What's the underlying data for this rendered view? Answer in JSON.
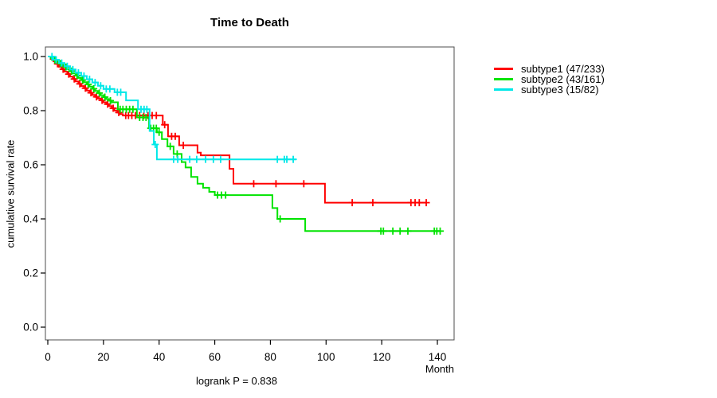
{
  "figure": {
    "title": "Time to Death",
    "annotation": "logrank P = 0.838"
  },
  "chart_data": {
    "type": "line",
    "subtype": "kaplan-meier-step-curves",
    "title": "Time to Death",
    "xlabel": "Month",
    "ylabel": "cumulative survival rate",
    "xlim": [
      0,
      140
    ],
    "ylim": [
      0.0,
      1.0
    ],
    "xticks": [
      0,
      20,
      40,
      60,
      80,
      100,
      120,
      140
    ],
    "yticks": [
      0.0,
      0.2,
      0.4,
      0.6,
      0.8,
      1.0
    ],
    "grid": false,
    "legend_position": "right-outside",
    "annotation": "logrank P = 0.838",
    "series": [
      {
        "name": "subtype1",
        "legend": "subtype1 (47/233)",
        "events": 47,
        "n": 233,
        "color": "#ff0000",
        "end_month": 136,
        "steps": [
          [
            0,
            1.0
          ],
          [
            1,
            0.991
          ],
          [
            2,
            0.982
          ],
          [
            3,
            0.973
          ],
          [
            4,
            0.962
          ],
          [
            5,
            0.953
          ],
          [
            6,
            0.944
          ],
          [
            7,
            0.935
          ],
          [
            8,
            0.926
          ],
          [
            9,
            0.917
          ],
          [
            10,
            0.908
          ],
          [
            11,
            0.899
          ],
          [
            12,
            0.891
          ],
          [
            13,
            0.883
          ],
          [
            14,
            0.874
          ],
          [
            15,
            0.866
          ],
          [
            16,
            0.858
          ],
          [
            17,
            0.851
          ],
          [
            18,
            0.845
          ],
          [
            19,
            0.838
          ],
          [
            20,
            0.831
          ],
          [
            21,
            0.824
          ],
          [
            22,
            0.817
          ],
          [
            23,
            0.809
          ],
          [
            24,
            0.8
          ],
          [
            25,
            0.793
          ],
          [
            26,
            0.787
          ],
          [
            27,
            0.782
          ],
          [
            41.3,
            0.748
          ],
          [
            43.2,
            0.705
          ],
          [
            47.2,
            0.672
          ],
          [
            53.8,
            0.645
          ],
          [
            55,
            0.635
          ],
          [
            65.3,
            0.585
          ],
          [
            66.7,
            0.53
          ],
          [
            99.6,
            0.46
          ]
        ],
        "censors": [
          [
            3.5,
            0.973
          ],
          [
            5.5,
            0.953
          ],
          [
            7.5,
            0.935
          ],
          [
            9.5,
            0.917
          ],
          [
            11.5,
            0.899
          ],
          [
            13.5,
            0.883
          ],
          [
            15.5,
            0.866
          ],
          [
            17.5,
            0.851
          ],
          [
            19.5,
            0.838
          ],
          [
            21.5,
            0.824
          ],
          [
            23.5,
            0.809
          ],
          [
            25.5,
            0.793
          ],
          [
            28,
            0.782
          ],
          [
            29,
            0.782
          ],
          [
            30.2,
            0.782
          ],
          [
            31.5,
            0.782
          ],
          [
            33,
            0.782
          ],
          [
            34.5,
            0.782
          ],
          [
            36,
            0.782
          ],
          [
            37.5,
            0.782
          ],
          [
            39,
            0.782
          ],
          [
            42,
            0.748
          ],
          [
            44.5,
            0.705
          ],
          [
            45.8,
            0.705
          ],
          [
            48.7,
            0.672
          ],
          [
            74,
            0.53
          ],
          [
            82,
            0.53
          ],
          [
            92,
            0.53
          ],
          [
            109.4,
            0.46
          ],
          [
            116.8,
            0.46
          ],
          [
            130.5,
            0.46
          ],
          [
            132,
            0.46
          ],
          [
            133.5,
            0.46
          ],
          [
            136,
            0.46
          ]
        ]
      },
      {
        "name": "subtype2",
        "legend": "subtype2 (43/161)",
        "events": 43,
        "n": 161,
        "color": "#00e300",
        "end_month": 141,
        "steps": [
          [
            0,
            1.0
          ],
          [
            1,
            0.994
          ],
          [
            2,
            0.987
          ],
          [
            3,
            0.981
          ],
          [
            4,
            0.974
          ],
          [
            5,
            0.968
          ],
          [
            6,
            0.961
          ],
          [
            7,
            0.953
          ],
          [
            8,
            0.946
          ],
          [
            9,
            0.938
          ],
          [
            10,
            0.93
          ],
          [
            11,
            0.921
          ],
          [
            12,
            0.913
          ],
          [
            13,
            0.905
          ],
          [
            14,
            0.897
          ],
          [
            15,
            0.889
          ],
          [
            16,
            0.881
          ],
          [
            17,
            0.873
          ],
          [
            18,
            0.865
          ],
          [
            19,
            0.857
          ],
          [
            20,
            0.85
          ],
          [
            21,
            0.843
          ],
          [
            22,
            0.837
          ],
          [
            23,
            0.831
          ],
          [
            25.2,
            0.805
          ],
          [
            32,
            0.775
          ],
          [
            36.4,
            0.735
          ],
          [
            39.2,
            0.72
          ],
          [
            41,
            0.695
          ],
          [
            43,
            0.668
          ],
          [
            45.2,
            0.64
          ],
          [
            48.1,
            0.61
          ],
          [
            49.5,
            0.59
          ],
          [
            51.5,
            0.555
          ],
          [
            53.8,
            0.53
          ],
          [
            55.8,
            0.515
          ],
          [
            58,
            0.5
          ],
          [
            60,
            0.488
          ],
          [
            80.7,
            0.44
          ],
          [
            82.5,
            0.4
          ],
          [
            92.5,
            0.355
          ]
        ],
        "censors": [
          [
            2.5,
            0.987
          ],
          [
            4.5,
            0.974
          ],
          [
            6.5,
            0.961
          ],
          [
            8.5,
            0.946
          ],
          [
            10.5,
            0.93
          ],
          [
            12.5,
            0.913
          ],
          [
            14.5,
            0.897
          ],
          [
            16.5,
            0.881
          ],
          [
            18.5,
            0.865
          ],
          [
            20.5,
            0.85
          ],
          [
            22.5,
            0.837
          ],
          [
            26,
            0.805
          ],
          [
            27,
            0.805
          ],
          [
            28.2,
            0.805
          ],
          [
            29.4,
            0.805
          ],
          [
            30.6,
            0.805
          ],
          [
            33,
            0.775
          ],
          [
            34.2,
            0.775
          ],
          [
            35.3,
            0.775
          ],
          [
            37,
            0.735
          ],
          [
            38,
            0.735
          ],
          [
            39,
            0.735
          ],
          [
            40,
            0.72
          ],
          [
            44,
            0.668
          ],
          [
            46.5,
            0.64
          ],
          [
            61,
            0.488
          ],
          [
            62.4,
            0.488
          ],
          [
            63.9,
            0.488
          ],
          [
            83.5,
            0.4
          ],
          [
            119.7,
            0.355
          ],
          [
            120.6,
            0.355
          ],
          [
            124,
            0.355
          ],
          [
            126.6,
            0.355
          ],
          [
            129.4,
            0.355
          ],
          [
            138.9,
            0.355
          ],
          [
            139.8,
            0.355
          ],
          [
            141,
            0.355
          ]
        ]
      },
      {
        "name": "subtype3",
        "legend": "subtype3 (15/82)",
        "events": 15,
        "n": 82,
        "color": "#00e8e8",
        "end_month": 89.3,
        "steps": [
          [
            0,
            1.0
          ],
          [
            2,
            0.988
          ],
          [
            4,
            0.976
          ],
          [
            6,
            0.964
          ],
          [
            8,
            0.952
          ],
          [
            10,
            0.94
          ],
          [
            12,
            0.928
          ],
          [
            14,
            0.916
          ],
          [
            16,
            0.904
          ],
          [
            18,
            0.892
          ],
          [
            20,
            0.88
          ],
          [
            24,
            0.868
          ],
          [
            28.1,
            0.838
          ],
          [
            32.4,
            0.805
          ],
          [
            36.6,
            0.725
          ],
          [
            38.1,
            0.675
          ],
          [
            39.2,
            0.62
          ]
        ],
        "censors": [
          [
            1.5,
            1.0
          ],
          [
            3,
            0.988
          ],
          [
            5,
            0.976
          ],
          [
            7,
            0.964
          ],
          [
            9,
            0.952
          ],
          [
            11,
            0.94
          ],
          [
            13,
            0.928
          ],
          [
            15,
            0.916
          ],
          [
            17,
            0.904
          ],
          [
            19,
            0.892
          ],
          [
            21,
            0.88
          ],
          [
            22.3,
            0.88
          ],
          [
            25,
            0.868
          ],
          [
            26.2,
            0.868
          ],
          [
            33.5,
            0.805
          ],
          [
            34.6,
            0.805
          ],
          [
            35.6,
            0.805
          ],
          [
            38.6,
            0.675
          ],
          [
            45.2,
            0.62
          ],
          [
            46.7,
            0.62
          ],
          [
            51,
            0.62
          ],
          [
            53.5,
            0.62
          ],
          [
            56.7,
            0.62
          ],
          [
            59.5,
            0.62
          ],
          [
            62.1,
            0.62
          ],
          [
            82.5,
            0.62
          ],
          [
            85,
            0.62
          ],
          [
            85.9,
            0.62
          ],
          [
            88.2,
            0.62
          ]
        ]
      }
    ]
  }
}
